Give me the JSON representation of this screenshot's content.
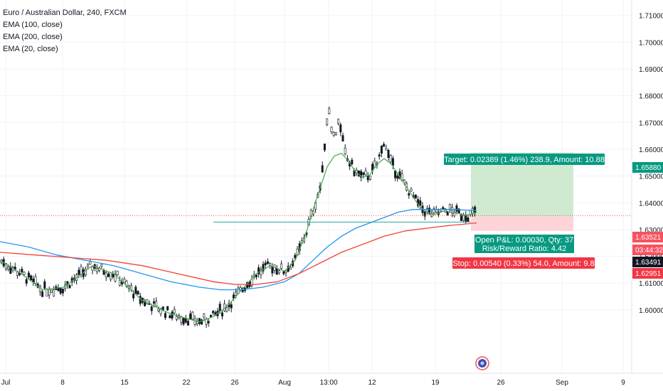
{
  "legend": {
    "title": "Euro / Australian Dollar, 240, FXCM",
    "indicators": [
      "EMA (100, close)",
      "EMA (200, close)",
      "EMA (20, close)"
    ]
  },
  "chart_data": {
    "type": "line",
    "symbol": "Euro / Australian Dollar",
    "timeframe": "240",
    "source": "FXCM",
    "y_range": [
      1.5935,
      1.7155
    ],
    "y_ticks": [
      "1.71000",
      "1.70000",
      "1.69000",
      "1.68000",
      "1.67000",
      "1.66000",
      "1.65000",
      "1.64000",
      "1.63000",
      "1.62000",
      "1.61000",
      "1.60000"
    ],
    "x_ticks": [
      "Jul",
      "8",
      "15",
      "22",
      "26",
      "Aug",
      "13:00",
      "12",
      "19",
      "26",
      "Sep",
      "9"
    ],
    "series": [
      {
        "name": "EMA (20, close)",
        "color": "#4caf50",
        "x": [
          0,
          30,
          60,
          90,
          115,
          130,
          160,
          200,
          240,
          280,
          300,
          320,
          340,
          360,
          380,
          400,
          415,
          430,
          445,
          460,
          470,
          480,
          490,
          500,
          510,
          520,
          530,
          540,
          550,
          560,
          570,
          580,
          590,
          600,
          610,
          620,
          630,
          640,
          650,
          660,
          670
        ],
        "y": [
          1.6185,
          1.6135,
          1.6075,
          1.6085,
          1.6135,
          1.6165,
          1.6135,
          1.6035,
          1.5985,
          1.5955,
          1.5975,
          1.6015,
          1.6075,
          1.6135,
          1.6165,
          1.6145,
          1.6185,
          1.6285,
          1.6415,
          1.6535,
          1.6575,
          1.6585,
          1.6555,
          1.6515,
          1.6495,
          1.6505,
          1.6545,
          1.6565,
          1.6545,
          1.6505,
          1.6465,
          1.6425,
          1.6385,
          1.6365,
          1.6355,
          1.6365,
          1.6375,
          1.6365,
          1.6355,
          1.6355,
          1.6365
        ]
      },
      {
        "name": "EMA (100, close)",
        "color": "#2196f3",
        "x": [
          0,
          40,
          80,
          120,
          160,
          200,
          240,
          280,
          310,
          340,
          370,
          400,
          420,
          440,
          460,
          480,
          500,
          520,
          540,
          560,
          580,
          600,
          620,
          640,
          660,
          670
        ],
        "y": [
          1.6255,
          1.6235,
          1.6205,
          1.6185,
          1.6165,
          1.6135,
          1.6105,
          1.6085,
          1.6075,
          1.6075,
          1.6085,
          1.6105,
          1.6135,
          1.6185,
          1.6235,
          1.6275,
          1.6305,
          1.6325,
          1.6345,
          1.6365,
          1.6375,
          1.6375,
          1.6375,
          1.6375,
          1.6372,
          1.6372
        ]
      },
      {
        "name": "EMA (200, close)",
        "color": "#f44336",
        "x": [
          0,
          50,
          100,
          150,
          200,
          250,
          300,
          330,
          360,
          390,
          420,
          450,
          480,
          510,
          540,
          570,
          600,
          630,
          660,
          670
        ],
        "y": [
          1.6215,
          1.6205,
          1.6195,
          1.6185,
          1.6165,
          1.6135,
          1.6105,
          1.6095,
          1.6095,
          1.6105,
          1.6135,
          1.6175,
          1.6215,
          1.6245,
          1.6275,
          1.6295,
          1.6305,
          1.6315,
          1.6322,
          1.6325
        ]
      }
    ],
    "price_labels": [
      {
        "text": "1.65880",
        "value": 1.6588,
        "bg": "#089981",
        "fg": "#ffffff"
      },
      {
        "text": "1.63521",
        "value": 1.63521,
        "bg": "#f7525f",
        "fg": "#ffffff"
      },
      {
        "text": "03:44:32",
        "value": 1.6335,
        "bg": "#f7525f",
        "fg": "#ffffff"
      },
      {
        "text": "1.63491",
        "value": 1.63491,
        "bg": "#131722",
        "fg": "#ffffff"
      },
      {
        "text": "1.62951",
        "value": 1.62951,
        "bg": "#f23645",
        "fg": "#ffffff"
      }
    ],
    "position": {
      "target_label": "Target: 0.02389 (1.46%) 238.9, Amount: 10.88",
      "stop_label": "Stop: 0.00540 (0.33%) 54.0, Amount: 9.8",
      "pnl_label": "Open P&L: 0.00030, Qty: 37",
      "rr_label": "Risk/Reward Ratio: 4.42",
      "entry": 1.63491,
      "target": 1.6588,
      "stop": 1.62951,
      "colors": {
        "profit": "#c8e6c9",
        "loss": "#ffcdd2",
        "target_bg": "#089981",
        "stop_bg": "#f23645",
        "pnl_bg": "#089981"
      }
    },
    "support_line": 1.6328,
    "current_price": 1.63521
  }
}
